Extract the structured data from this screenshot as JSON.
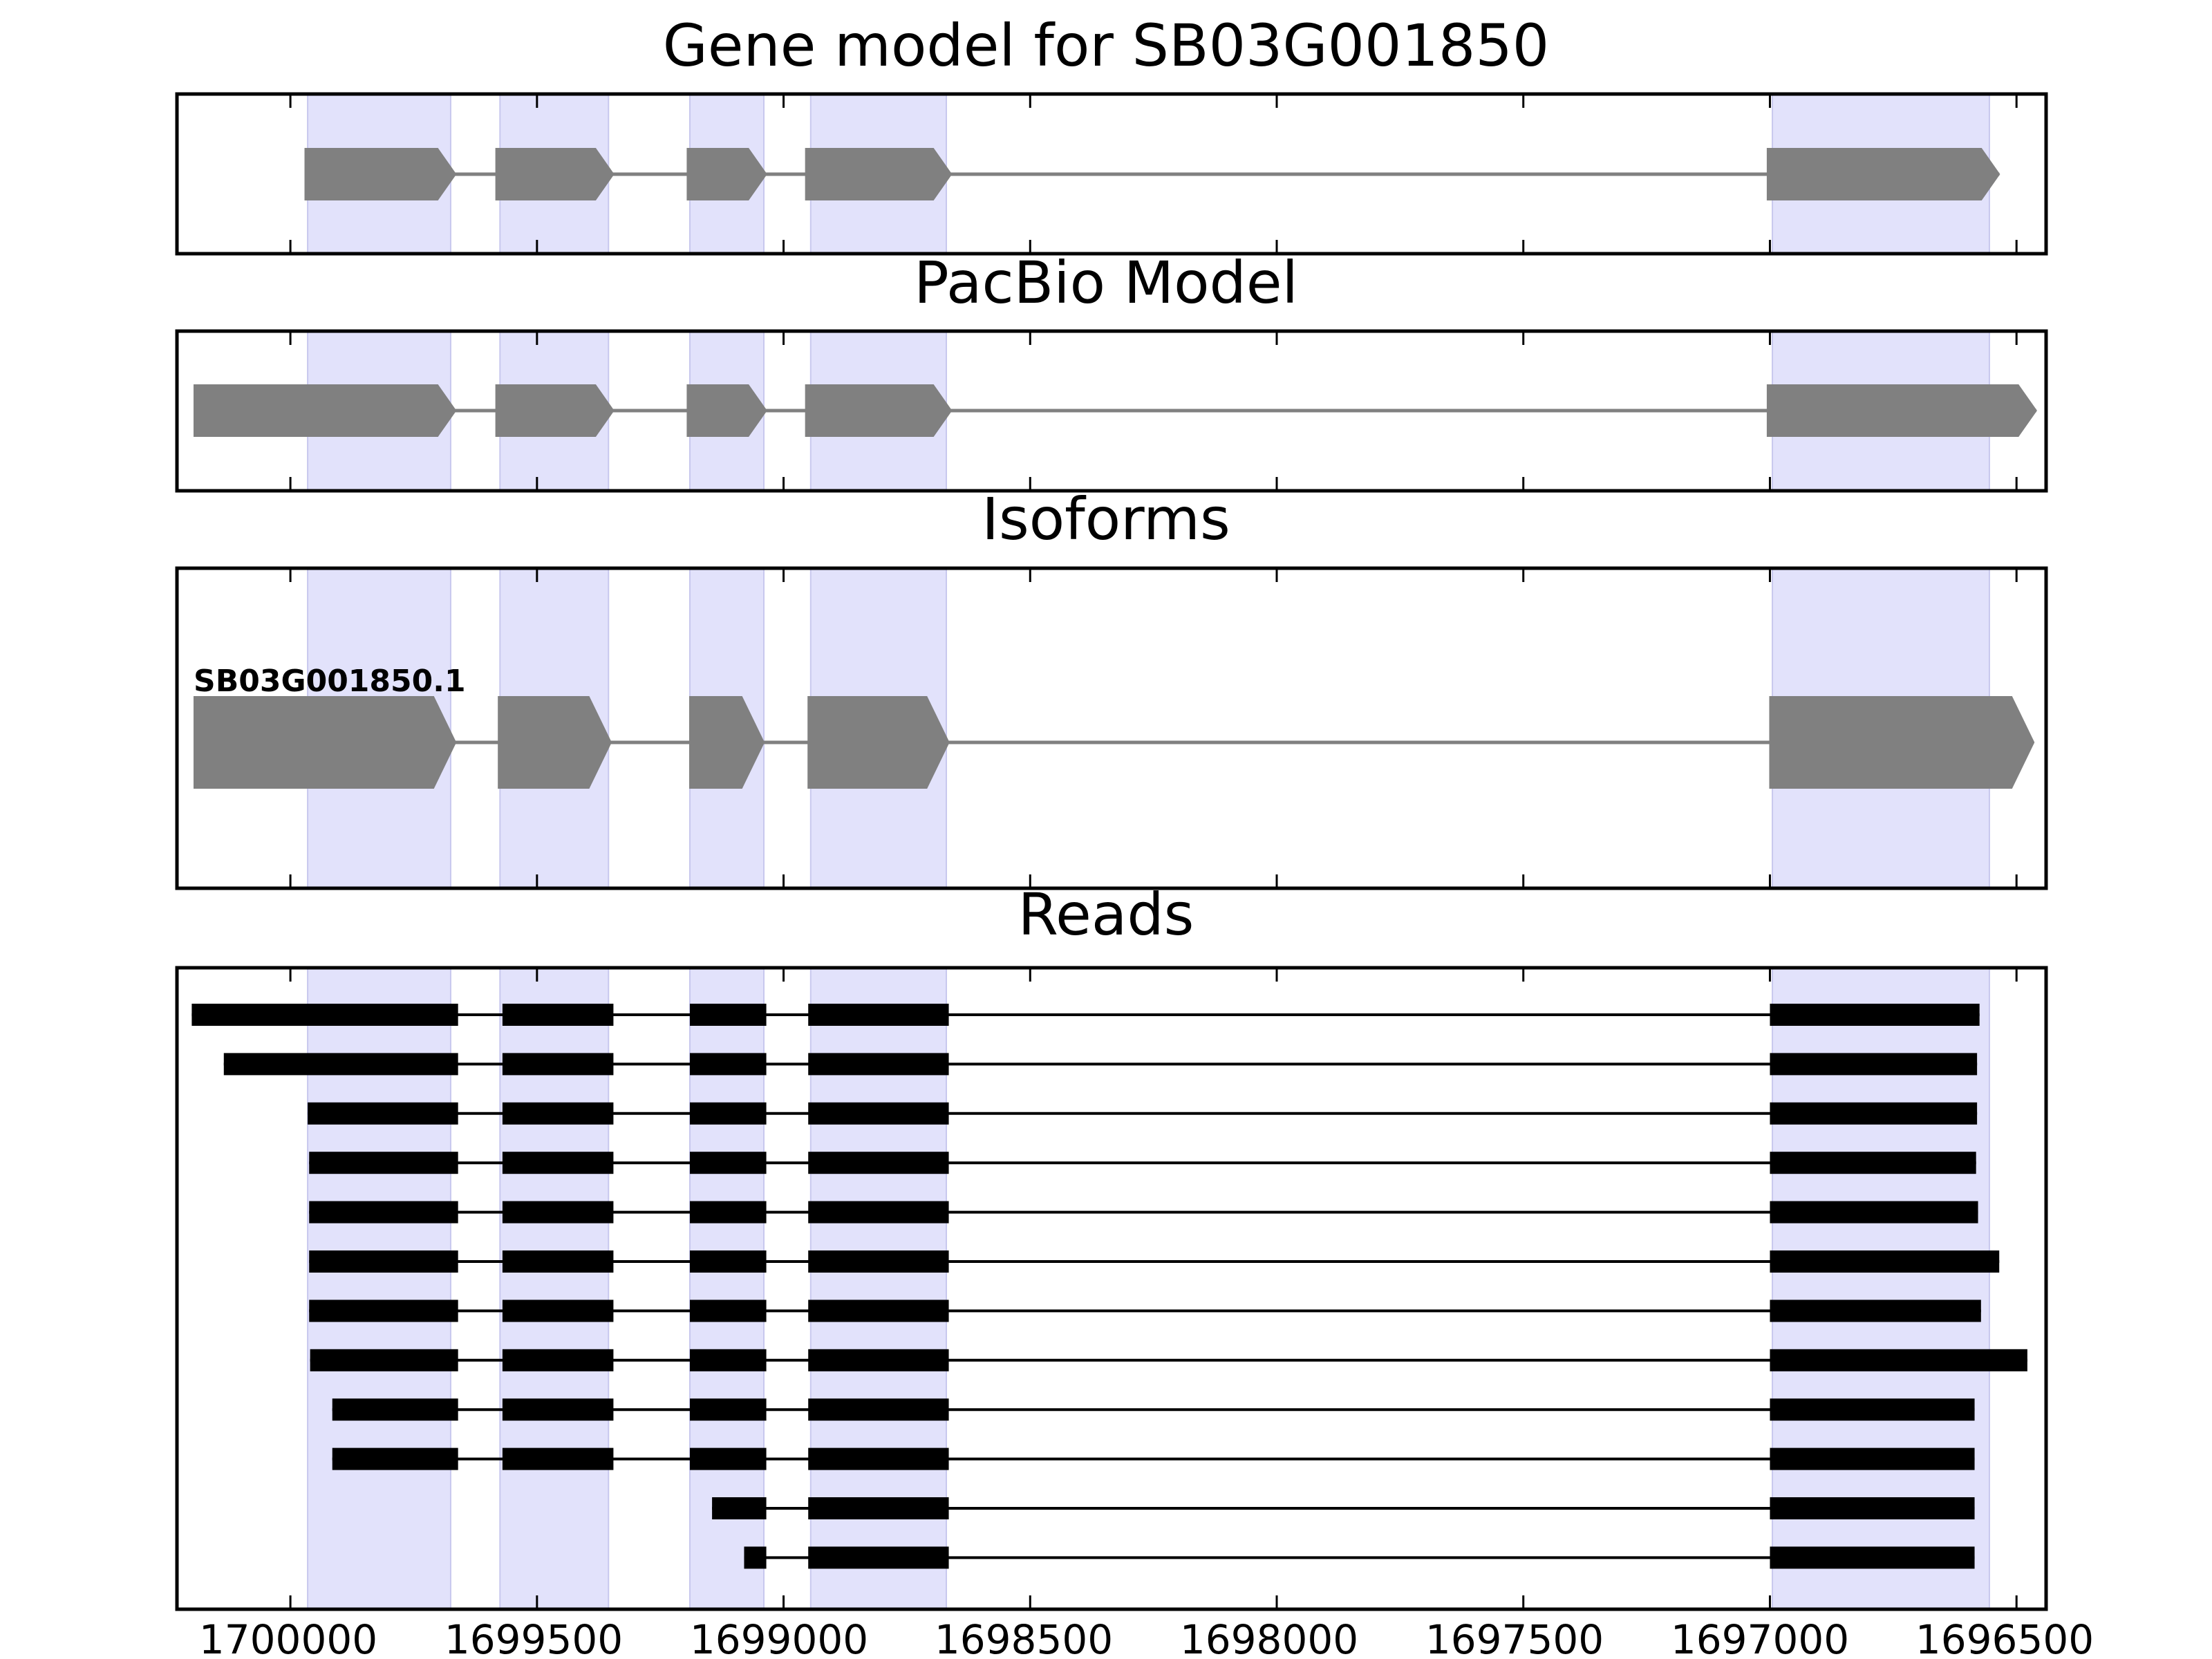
{
  "figure": {
    "panels": [
      {
        "id": "gene-model",
        "title": "Gene model for SB03G001850"
      },
      {
        "id": "pacbio-model",
        "title": "PacBio Model"
      },
      {
        "id": "isoforms",
        "title": "Isoforms"
      },
      {
        "id": "reads",
        "title": "Reads"
      }
    ],
    "x_ticks": [
      "1700000",
      "1699500",
      "1699000",
      "1698500",
      "1698000",
      "1697500",
      "1697000",
      "1696500"
    ],
    "isoform_labels": [
      "SB03G001850.1"
    ]
  },
  "chart_data": {
    "type": "gene-structure",
    "x_axis": {
      "range": [
        1700230,
        1696440
      ],
      "reversed": true,
      "ticks": [
        1700000,
        1699500,
        1699000,
        1698500,
        1698000,
        1697500,
        1697000,
        1696500
      ]
    },
    "highlight_exons": [
      [
        1699965,
        1699675
      ],
      [
        1699575,
        1699355
      ],
      [
        1699190,
        1699040
      ],
      [
        1698945,
        1698670
      ],
      [
        1696995,
        1696555
      ]
    ],
    "gene_model": {
      "title": "Gene model for SB03G001850",
      "exons": [
        [
          1699970,
          1699665
        ],
        [
          1699583,
          1699345
        ],
        [
          1699195,
          1699035
        ],
        [
          1698955,
          1698660
        ],
        [
          1697005,
          1696535
        ]
      ]
    },
    "pacbio_model": {
      "title": "PacBio Model",
      "exons": [
        [
          1700195,
          1699665
        ],
        [
          1699583,
          1699345
        ],
        [
          1699195,
          1699035
        ],
        [
          1698955,
          1698660
        ],
        [
          1697005,
          1696460
        ]
      ]
    },
    "isoforms": [
      {
        "name": "SB03G001850.1",
        "exons": [
          [
            1700195,
            1699665
          ],
          [
            1699578,
            1699350
          ],
          [
            1699190,
            1699040
          ],
          [
            1698950,
            1698665
          ],
          [
            1697000,
            1696465
          ]
        ]
      }
    ],
    "reads": [
      [
        [
          1700200,
          1699660
        ],
        [
          1699570,
          1699345
        ],
        [
          1699190,
          1699035
        ],
        [
          1698950,
          1698665
        ],
        [
          1697000,
          1696575
        ]
      ],
      [
        [
          1700135,
          1699660
        ],
        [
          1699570,
          1699345
        ],
        [
          1699190,
          1699035
        ],
        [
          1698950,
          1698665
        ],
        [
          1697000,
          1696580
        ]
      ],
      [
        [
          1699965,
          1699660
        ],
        [
          1699570,
          1699345
        ],
        [
          1699190,
          1699035
        ],
        [
          1698950,
          1698665
        ],
        [
          1697000,
          1696580
        ]
      ],
      [
        [
          1699962,
          1699660
        ],
        [
          1699570,
          1699345
        ],
        [
          1699190,
          1699035
        ],
        [
          1698950,
          1698665
        ],
        [
          1697000,
          1696582
        ]
      ],
      [
        [
          1699962,
          1699660
        ],
        [
          1699570,
          1699345
        ],
        [
          1699190,
          1699035
        ],
        [
          1698950,
          1698665
        ],
        [
          1697000,
          1696578
        ]
      ],
      [
        [
          1699962,
          1699660
        ],
        [
          1699570,
          1699345
        ],
        [
          1699190,
          1699035
        ],
        [
          1698950,
          1698665
        ],
        [
          1697000,
          1696535
        ]
      ],
      [
        [
          1699962,
          1699660
        ],
        [
          1699570,
          1699345
        ],
        [
          1699190,
          1699035
        ],
        [
          1698950,
          1698665
        ],
        [
          1697000,
          1696572
        ]
      ],
      [
        [
          1699960,
          1699660
        ],
        [
          1699570,
          1699345
        ],
        [
          1699190,
          1699035
        ],
        [
          1698950,
          1698665
        ],
        [
          1697000,
          1696478
        ]
      ],
      [
        [
          1699915,
          1699660
        ],
        [
          1699570,
          1699345
        ],
        [
          1699190,
          1699035
        ],
        [
          1698950,
          1698665
        ],
        [
          1697000,
          1696585
        ]
      ],
      [
        [
          1699915,
          1699660
        ],
        [
          1699570,
          1699345
        ],
        [
          1699190,
          1699035
        ],
        [
          1698950,
          1698665
        ],
        [
          1697000,
          1696585
        ]
      ],
      [
        [
          1699145,
          1699035
        ],
        [
          1698950,
          1698665
        ],
        [
          1697000,
          1696585
        ]
      ],
      [
        [
          1699080,
          1699035
        ],
        [
          1698950,
          1698665
        ],
        [
          1697000,
          1696585
        ]
      ]
    ]
  }
}
